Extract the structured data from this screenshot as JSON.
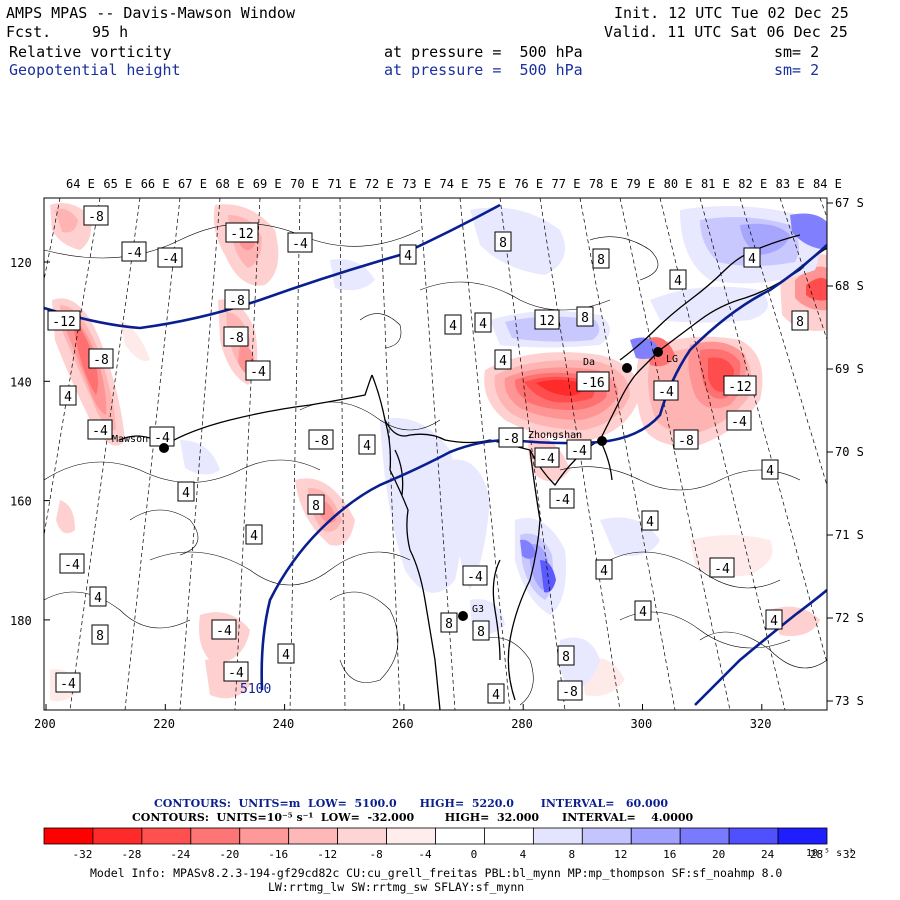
{
  "header": {
    "title": "AMPS MPAS -- Davis-Mawson Window",
    "fcst_label": "Fcst.",
    "fcst_value": "95 h",
    "init": "Init. 12 UTC Tue 02 Dec 25",
    "valid": "Valid. 11 UTC Sat 06 Dec 25",
    "field1": "Relative vorticity",
    "field2": "Geopotential height",
    "pressure1": "at pressure =  500 hPa",
    "pressure2": "at pressure =  500 hPa",
    "sm1": "sm= 2",
    "sm2": "sm= 2"
  },
  "map": {
    "top_lon_labels": [
      "64 E",
      "65 E",
      "66 E",
      "67 E",
      "68 E",
      "69 E",
      "70 E",
      "71 E",
      "72 E",
      "73 E",
      "74 E",
      "75 E",
      "76 E",
      "77 E",
      "78 E",
      "79 E",
      "80 E",
      "81 E",
      "82 E",
      "83 E",
      "84 E"
    ],
    "right_lat_labels": [
      "67 S",
      "68 S",
      "69 S",
      "70 S",
      "71 S",
      "72 S",
      "73 S"
    ],
    "left_y_labels": [
      "120",
      "140",
      "160",
      "180"
    ],
    "bottom_x_labels": [
      "200",
      "220",
      "240",
      "260",
      "280",
      "300",
      "320"
    ],
    "stations": [
      {
        "name": "Mawson"
      },
      {
        "name": "Zhongshan"
      },
      {
        "name": "G3"
      },
      {
        "name": "Da"
      },
      {
        "name": "LG"
      }
    ],
    "height_contour_label": "5100",
    "vort_labels": [
      "-8",
      "-4",
      "-4",
      "-12",
      "-8",
      "-4",
      "-12",
      "-8",
      "-8",
      "4",
      "-4",
      "-4",
      "-4",
      "-8",
      "4",
      "4",
      "4",
      "8",
      "4",
      "8",
      "8",
      "4",
      "4",
      "12",
      "8",
      "4",
      "-16",
      "-4",
      "-8",
      "-4",
      "-4",
      "-12",
      "-4",
      "-8",
      "4",
      "-4",
      "4",
      "4",
      "4",
      "-4",
      "-4",
      "-4",
      "8",
      "8",
      "8",
      "4",
      "4",
      "8",
      "4",
      "-4",
      "-4",
      "-4",
      "-8",
      "4",
      "4",
      "8",
      "4"
    ],
    "colors": {
      "geopotential": "#0a1f8f",
      "coast": "#000000",
      "neg_strong": "#ff0000",
      "pos_strong": "#0000ff"
    }
  },
  "footer": {
    "contours1": "CONTOURS:  UNITS=m  LOW=  5100.0      HIGH=  5220.0       INTERVAL=   60.000",
    "contours2": "CONTOURS:  UNITS=10⁻⁵ s⁻¹  LOW=  -32.000        HIGH=  32.000      INTERVAL=    4.0000",
    "colorbar_ticks": [
      "-32",
      "-28",
      "-24",
      "-20",
      "-16",
      "-12",
      "-8",
      "-4",
      "0",
      "4",
      "8",
      "12",
      "16",
      "20",
      "24",
      "28",
      "32"
    ],
    "colorbar_units": "10⁻⁵ s⁻¹",
    "colorbar_colors": [
      "#ff0000",
      "#ff2a2a",
      "#ff4d4d",
      "#ff7070",
      "#ff9494",
      "#ffb4b4",
      "#ffd0d0",
      "#ffeaea",
      "#ffffff",
      "#ffffff",
      "#e8e8ff",
      "#c8c8ff",
      "#a6a6ff",
      "#8080ff",
      "#5a5aff",
      "#3434ff",
      "#0a0aff"
    ],
    "model_info1": "Model Info: MPASv8.2.3-194-gf29cd82c CU:cu_grell_freitas PBL:bl_mynn MP:mp_thompson SF:sf_noahmp 8.0",
    "model_info2": "LW:rrtmg_lw SW:rrtmg_sw SFLAY:sf_mynn"
  }
}
